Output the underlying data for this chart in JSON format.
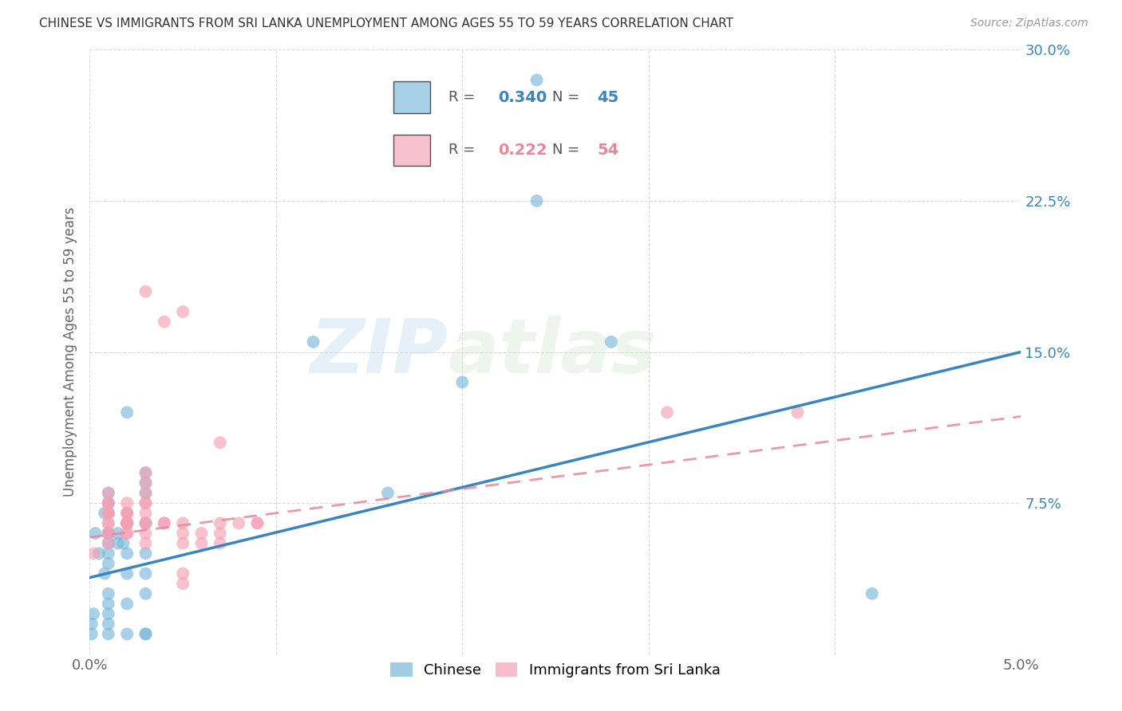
{
  "title": "CHINESE VS IMMIGRANTS FROM SRI LANKA UNEMPLOYMENT AMONG AGES 55 TO 59 YEARS CORRELATION CHART",
  "source": "Source: ZipAtlas.com",
  "ylabel": "Unemployment Among Ages 55 to 59 years",
  "xlim": [
    0.0,
    0.05
  ],
  "ylim": [
    0.0,
    0.3
  ],
  "xticks": [
    0.0,
    0.01,
    0.02,
    0.03,
    0.04,
    0.05
  ],
  "yticks": [
    0.0,
    0.075,
    0.15,
    0.225,
    0.3
  ],
  "xtick_labels": [
    "0.0%",
    "",
    "",
    "",
    "",
    "5.0%"
  ],
  "ytick_labels_right": [
    "",
    "7.5%",
    "15.0%",
    "22.5%",
    "30.0%"
  ],
  "chinese_R": 0.34,
  "chinese_N": 45,
  "srilanka_R": 0.222,
  "srilanka_N": 54,
  "chinese_color": "#7ab8d9",
  "srilanka_color": "#f4a0b5",
  "chinese_line_color": "#3a85c0",
  "srilanka_line_color": "#e8879a",
  "watermark_zip": "ZIP",
  "watermark_atlas": "atlas",
  "background_color": "#ffffff",
  "grid_color": "#cccccc",
  "chinese_line_y0": 0.038,
  "chinese_line_y1": 0.15,
  "srilanka_line_y0": 0.058,
  "srilanka_line_y1": 0.118,
  "chinese_x": [
    0.0005,
    0.001,
    0.0015,
    0.0015,
    0.002,
    0.001,
    0.0008,
    0.0018,
    0.001,
    0.0003,
    0.001,
    0.001,
    0.001,
    0.0008,
    0.002,
    0.002,
    0.003,
    0.001,
    0.001,
    0.0002,
    0.0001,
    0.001,
    0.003,
    0.003,
    0.002,
    0.003,
    0.003,
    0.002,
    0.003,
    0.003,
    0.002,
    0.001,
    0.001,
    0.002,
    0.0001,
    0.001,
    0.003,
    0.003,
    0.024,
    0.024,
    0.02,
    0.012,
    0.016,
    0.042,
    0.028
  ],
  "chinese_y": [
    0.05,
    0.075,
    0.06,
    0.055,
    0.065,
    0.06,
    0.07,
    0.055,
    0.08,
    0.06,
    0.05,
    0.055,
    0.045,
    0.04,
    0.04,
    0.05,
    0.05,
    0.03,
    0.02,
    0.02,
    0.015,
    0.06,
    0.085,
    0.09,
    0.12,
    0.08,
    0.065,
    0.065,
    0.04,
    0.03,
    0.025,
    0.025,
    0.015,
    0.01,
    0.01,
    0.01,
    0.01,
    0.01,
    0.285,
    0.225,
    0.135,
    0.155,
    0.08,
    0.03,
    0.155
  ],
  "srilanka_x": [
    0.0002,
    0.001,
    0.001,
    0.001,
    0.001,
    0.001,
    0.001,
    0.001,
    0.001,
    0.001,
    0.001,
    0.001,
    0.002,
    0.002,
    0.002,
    0.002,
    0.002,
    0.002,
    0.002,
    0.002,
    0.002,
    0.002,
    0.002,
    0.003,
    0.003,
    0.003,
    0.003,
    0.003,
    0.003,
    0.003,
    0.003,
    0.003,
    0.003,
    0.003,
    0.004,
    0.004,
    0.004,
    0.005,
    0.005,
    0.005,
    0.005,
    0.005,
    0.005,
    0.006,
    0.006,
    0.007,
    0.007,
    0.007,
    0.007,
    0.008,
    0.009,
    0.009,
    0.031,
    0.038
  ],
  "srilanka_y": [
    0.05,
    0.055,
    0.06,
    0.065,
    0.07,
    0.065,
    0.07,
    0.075,
    0.07,
    0.075,
    0.08,
    0.06,
    0.07,
    0.065,
    0.065,
    0.06,
    0.07,
    0.07,
    0.075,
    0.065,
    0.065,
    0.06,
    0.065,
    0.065,
    0.07,
    0.075,
    0.075,
    0.08,
    0.085,
    0.09,
    0.065,
    0.06,
    0.055,
    0.18,
    0.065,
    0.065,
    0.165,
    0.17,
    0.055,
    0.06,
    0.065,
    0.035,
    0.04,
    0.055,
    0.06,
    0.06,
    0.055,
    0.065,
    0.105,
    0.065,
    0.065,
    0.065,
    0.12,
    0.12
  ]
}
